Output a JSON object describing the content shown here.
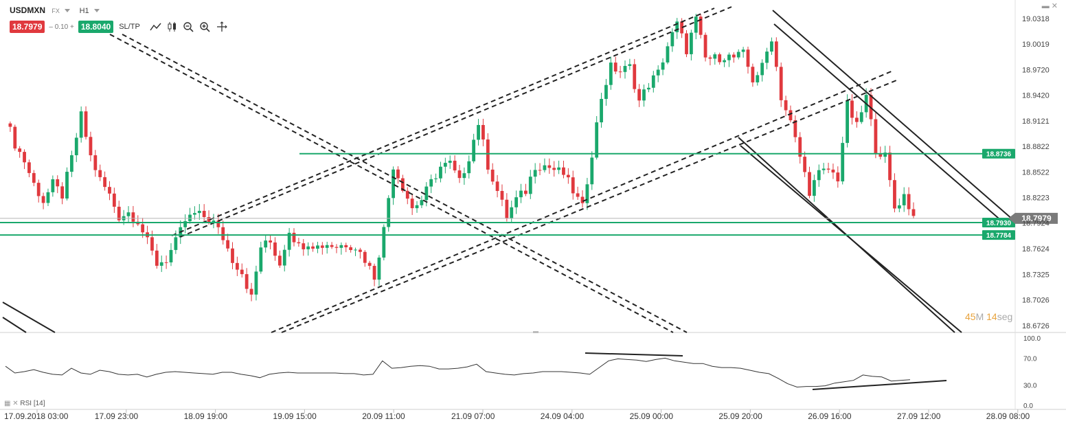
{
  "instrument": {
    "symbol": "USDMXN",
    "type": "FX",
    "timeframe": "H1",
    "bid": "18.7979",
    "spread": "0.10",
    "ask": "18.8040",
    "sltp_label": "SL/TP"
  },
  "countdown": {
    "minutes": "45",
    "minutes_unit": "M",
    "seconds": "14",
    "seconds_unit": "seg"
  },
  "indicator": {
    "label": "RSI [14]"
  },
  "colors": {
    "bull": "#1aa86c",
    "bear": "#e0393e",
    "level": "#1aa86c",
    "trend": "#222222",
    "current": "#7a7a7a",
    "rsi": "#333333"
  },
  "chart_data": {
    "type": "candlestick",
    "price_axis_ticks": [
      "19.0318",
      "19.0019",
      "18.9720",
      "18.9420",
      "18.9121",
      "18.8822",
      "18.8522",
      "18.8223",
      "18.7924",
      "18.7624",
      "18.7325",
      "18.7026",
      "18.6726"
    ],
    "time_axis_ticks": [
      "17.09.2018 03:00",
      "17.09 23:00",
      "18.09 19:00",
      "19.09 15:00",
      "20.09 11:00",
      "21.09 07:00",
      "24.09 04:00",
      "25.09 00:00",
      "25.09 20:00",
      "26.09 16:00",
      "27.09 12:00",
      "28.09 08:00"
    ],
    "ylim": [
      18.666,
      19.047
    ],
    "current_price": {
      "value": 18.7979,
      "label": "18.7979"
    },
    "levels": [
      {
        "value": 18.8736,
        "label": "18.8736"
      },
      {
        "value": 18.793,
        "label": "18.7930"
      },
      {
        "value": 18.7784,
        "label": "18.7784"
      }
    ],
    "close_path": [
      [
        0,
        18.915
      ],
      [
        2,
        18.885
      ],
      [
        4,
        18.865
      ],
      [
        6,
        18.838
      ],
      [
        8,
        18.818
      ],
      [
        10,
        18.838
      ],
      [
        12,
        18.825
      ],
      [
        14,
        18.868
      ],
      [
        16,
        18.918
      ],
      [
        18,
        18.87
      ],
      [
        20,
        18.843
      ],
      [
        22,
        18.825
      ],
      [
        24,
        18.8
      ],
      [
        26,
        18.805
      ],
      [
        28,
        18.795
      ],
      [
        30,
        18.77
      ],
      [
        32,
        18.745
      ],
      [
        34,
        18.75
      ],
      [
        36,
        18.77
      ],
      [
        38,
        18.795
      ],
      [
        40,
        18.803
      ],
      [
        42,
        18.8
      ],
      [
        44,
        18.793
      ],
      [
        46,
        18.775
      ],
      [
        48,
        18.75
      ],
      [
        50,
        18.735
      ],
      [
        52,
        18.705
      ],
      [
        54,
        18.765
      ],
      [
        56,
        18.77
      ],
      [
        58,
        18.745
      ],
      [
        60,
        18.785
      ],
      [
        62,
        18.765
      ],
      [
        64,
        18.77
      ],
      [
        66,
        18.765
      ],
      [
        68,
        18.768
      ],
      [
        70,
        18.765
      ],
      [
        72,
        18.768
      ],
      [
        74,
        18.765
      ],
      [
        76,
        18.75
      ],
      [
        78,
        18.73
      ],
      [
        80,
        18.785
      ],
      [
        82,
        18.86
      ],
      [
        84,
        18.835
      ],
      [
        86,
        18.81
      ],
      [
        88,
        18.82
      ],
      [
        90,
        18.84
      ],
      [
        92,
        18.858
      ],
      [
        94,
        18.862
      ],
      [
        96,
        18.84
      ],
      [
        98,
        18.87
      ],
      [
        100,
        18.91
      ],
      [
        102,
        18.86
      ],
      [
        104,
        18.83
      ],
      [
        106,
        18.8
      ],
      [
        108,
        18.82
      ],
      [
        110,
        18.83
      ],
      [
        112,
        18.86
      ],
      [
        114,
        18.86
      ],
      [
        116,
        18.855
      ],
      [
        118,
        18.85
      ],
      [
        120,
        18.83
      ],
      [
        122,
        18.81
      ],
      [
        124,
        18.875
      ],
      [
        126,
        18.94
      ],
      [
        128,
        18.975
      ],
      [
        130,
        18.97
      ],
      [
        132,
        18.975
      ],
      [
        134,
        18.935
      ],
      [
        136,
        18.955
      ],
      [
        138,
        18.968
      ],
      [
        140,
        19.0
      ],
      [
        142,
        19.025
      ],
      [
        144,
        18.995
      ],
      [
        146,
        19.03
      ],
      [
        148,
        18.985
      ],
      [
        150,
        18.985
      ],
      [
        152,
        18.988
      ],
      [
        154,
        18.986
      ],
      [
        156,
        18.99
      ],
      [
        158,
        18.96
      ],
      [
        160,
        18.975
      ],
      [
        162,
        19.01
      ],
      [
        164,
        18.94
      ],
      [
        166,
        18.91
      ],
      [
        168,
        18.87
      ],
      [
        170,
        18.83
      ],
      [
        172,
        18.85
      ],
      [
        174,
        18.855
      ],
      [
        176,
        18.845
      ],
      [
        178,
        18.93
      ],
      [
        180,
        18.905
      ],
      [
        182,
        18.94
      ],
      [
        184,
        18.88
      ],
      [
        186,
        18.87
      ],
      [
        188,
        18.81
      ],
      [
        190,
        18.825
      ],
      [
        192,
        18.8
      ]
    ],
    "rsi": {
      "label": "RSI [14]",
      "ylim": [
        0,
        100
      ],
      "ticks": [
        "100.0",
        "70.0",
        "30.0",
        "0.0"
      ],
      "values": [
        58,
        48,
        50,
        53,
        49,
        46,
        45,
        55,
        48,
        46,
        52,
        50,
        46,
        45,
        46,
        42,
        46,
        49,
        50,
        49,
        48,
        47,
        46,
        49,
        49,
        46,
        44,
        41,
        46,
        48,
        49,
        48,
        48,
        48,
        48,
        48,
        47,
        47,
        45,
        46,
        66,
        55,
        56,
        58,
        59,
        58,
        54,
        54,
        55,
        57,
        61,
        50,
        48,
        46,
        45,
        47,
        48,
        50,
        50,
        50,
        49,
        48,
        46,
        56,
        66,
        69,
        68,
        67,
        65,
        68,
        70,
        66,
        64,
        62,
        62,
        58,
        56,
        56,
        55,
        52,
        49,
        47,
        40,
        32,
        27,
        28,
        28,
        29,
        33,
        35,
        37,
        45,
        43,
        42,
        36,
        37,
        38
      ]
    }
  }
}
